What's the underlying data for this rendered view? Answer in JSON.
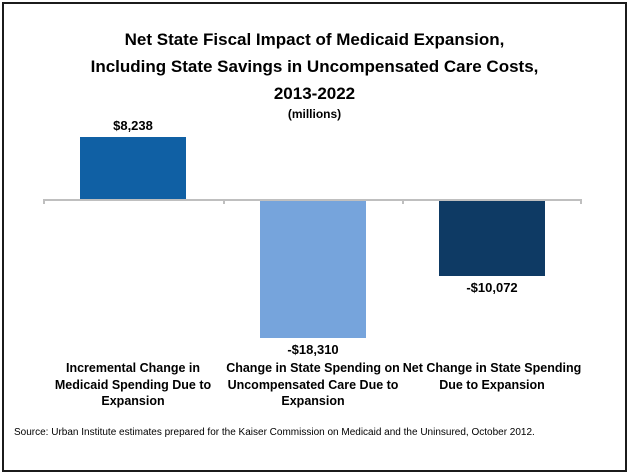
{
  "chart_data": {
    "type": "bar",
    "title": "Net State Fiscal Impact of Medicaid Expansion, Including State Savings in Uncompensated Care Costs, 2013-2022",
    "title_lines": [
      "Net State Fiscal Impact of Medicaid Expansion,",
      "Including State Savings in Uncompensated Care Costs,",
      "2013-2022"
    ],
    "subtitle": "(millions)",
    "categories": [
      "Incremental Change in Medicaid Spending Due to Expansion",
      "Change in State Spending on Uncompensated Care Due to Expansion",
      "Net Change in State Spending Due to Expansion"
    ],
    "values": [
      8238,
      -18310,
      -10072
    ],
    "value_labels": [
      "$8,238",
      "-$18,310",
      "-$10,072"
    ],
    "bar_colors": [
      "#1060A4",
      "#76A4DC",
      "#0E3A64"
    ],
    "axis_color": "#BFBFBF",
    "xlabel": "",
    "ylabel": "",
    "ylim": [
      -20000,
      10000
    ],
    "grid": false,
    "legend": false
  },
  "source": "Source: Urban Institute estimates prepared for the Kaiser Commission on Medicaid and the Uninsured, October 2012."
}
